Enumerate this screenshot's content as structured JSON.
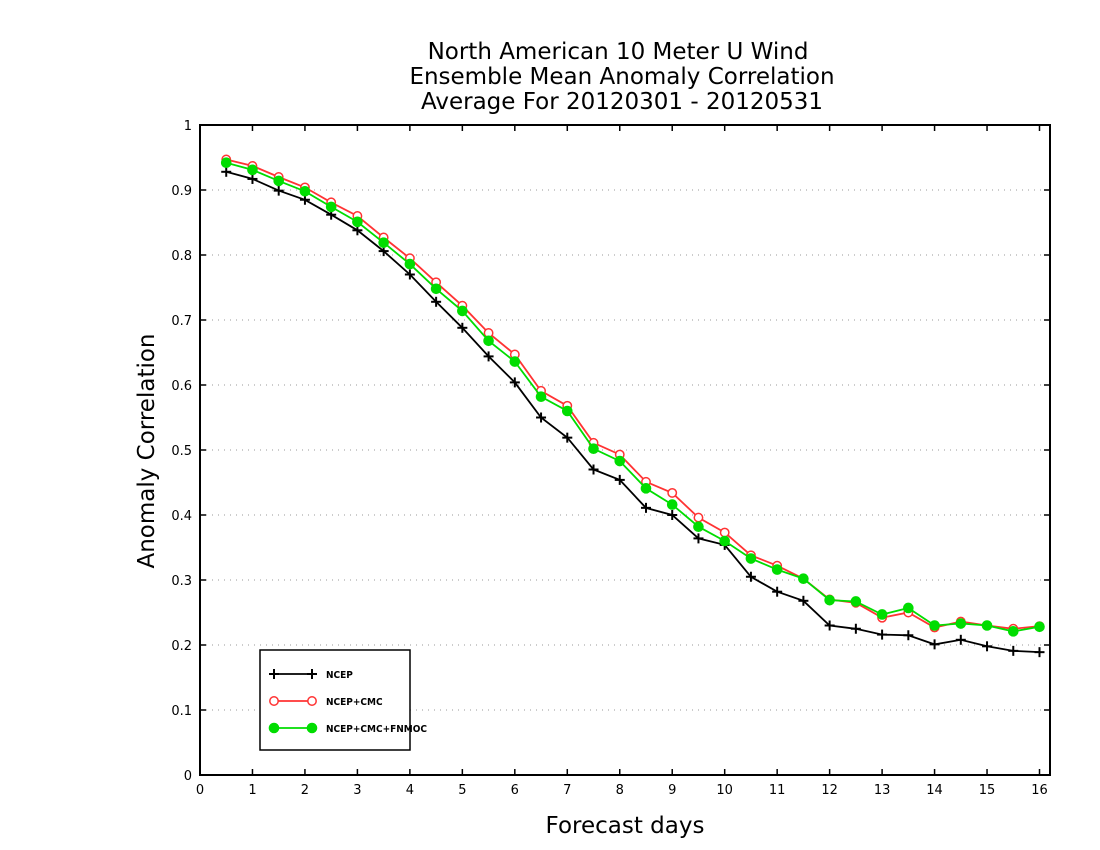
{
  "chart_data": {
    "type": "line",
    "title": [
      "North American 10 Meter U Wind",
      "Ensemble Mean Anomaly Correlation",
      "Average For 20120301 - 20120531"
    ],
    "xlabel": "Forecast days",
    "ylabel": "Anomaly Correlation",
    "xlim": [
      0,
      16.2
    ],
    "ylim": [
      0,
      1
    ],
    "xticks": [
      0,
      1,
      2,
      3,
      4,
      5,
      6,
      7,
      8,
      9,
      10,
      11,
      12,
      13,
      14,
      15,
      16
    ],
    "yticks": [
      0,
      0.1,
      0.2,
      0.3,
      0.4,
      0.5,
      0.6,
      0.7,
      0.8,
      0.9,
      1
    ],
    "xtick_labels": [
      "0",
      "1",
      "2",
      "3",
      "4",
      "5",
      "6",
      "7",
      "8",
      "9",
      "10",
      "11",
      "12",
      "13",
      "14",
      "15",
      "16"
    ],
    "ytick_labels": [
      "0",
      "0.1",
      "0.2",
      "0.3",
      "0.4",
      "0.5",
      "0.6",
      "0.7",
      "0.8",
      "0.9",
      "1"
    ],
    "grid": "horizontal dotted",
    "legend_position": "bottom-left",
    "x": [
      0.5,
      1.0,
      1.5,
      2.0,
      2.5,
      3.0,
      3.5,
      4.0,
      4.5,
      5.0,
      5.5,
      6.0,
      6.5,
      7.0,
      7.5,
      8.0,
      8.5,
      9.0,
      9.5,
      10.0,
      10.5,
      11.0,
      11.5,
      12.0,
      12.5,
      13.0,
      13.5,
      14.0,
      14.5,
      15.0,
      15.5,
      16.0
    ],
    "series": [
      {
        "name": "NCEP",
        "color": "#000000",
        "marker": "plus",
        "values": [
          0.928,
          0.917,
          0.899,
          0.885,
          0.862,
          0.838,
          0.806,
          0.77,
          0.728,
          0.688,
          0.644,
          0.604,
          0.55,
          0.519,
          0.47,
          0.454,
          0.411,
          0.4,
          0.364,
          0.354,
          0.305,
          0.282,
          0.268,
          0.23,
          0.225,
          0.216,
          0.215,
          0.201,
          0.208,
          0.198,
          0.191,
          0.189
        ]
      },
      {
        "name": "NCEP+CMC",
        "color": "#ff3333",
        "marker": "open-circle",
        "values": [
          0.947,
          0.937,
          0.92,
          0.904,
          0.881,
          0.86,
          0.827,
          0.795,
          0.758,
          0.722,
          0.68,
          0.647,
          0.591,
          0.568,
          0.511,
          0.493,
          0.451,
          0.434,
          0.396,
          0.373,
          0.338,
          0.322,
          0.302,
          0.27,
          0.265,
          0.242,
          0.25,
          0.227,
          0.236,
          0.23,
          0.225,
          0.229
        ]
      },
      {
        "name": "NCEP+CMC+FNMOC",
        "color": "#00dd00",
        "marker": "filled-circle",
        "values": [
          0.942,
          0.931,
          0.914,
          0.898,
          0.874,
          0.851,
          0.819,
          0.786,
          0.748,
          0.714,
          0.668,
          0.636,
          0.582,
          0.56,
          0.502,
          0.483,
          0.441,
          0.416,
          0.382,
          0.36,
          0.333,
          0.316,
          0.302,
          0.269,
          0.267,
          0.247,
          0.257,
          0.23,
          0.233,
          0.23,
          0.221,
          0.228
        ]
      }
    ]
  }
}
